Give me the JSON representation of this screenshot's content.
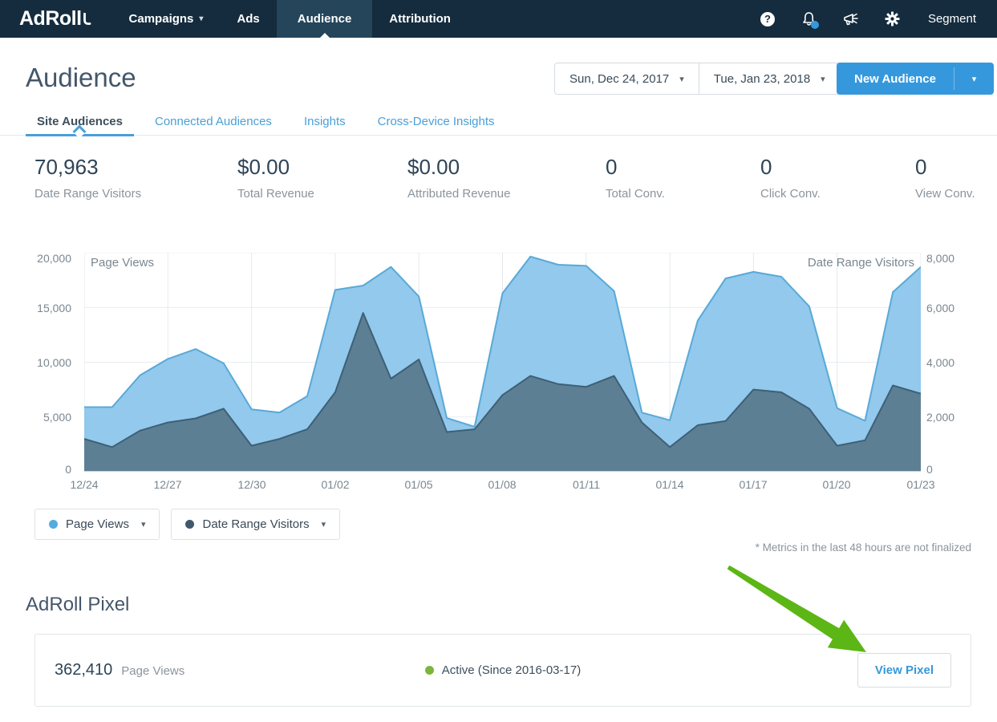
{
  "nav": {
    "logo": "AdRoll",
    "items": [
      {
        "label": "Campaigns",
        "caret": "▾",
        "active": false
      },
      {
        "label": "Ads",
        "active": false
      },
      {
        "label": "Audience",
        "active": true
      },
      {
        "label": "Attribution",
        "active": false
      }
    ],
    "help_glyph": "?",
    "segment_label": "Segment"
  },
  "header": {
    "title": "Audience",
    "date_start": "Sun, Dec 24, 2017",
    "date_end": "Tue, Jan 23, 2018",
    "picker_caret": "▾",
    "new_audience_label": "New Audience",
    "new_audience_caret": "▾"
  },
  "tabs": [
    {
      "label": "Site Audiences",
      "active": true
    },
    {
      "label": "Connected Audiences",
      "active": false
    },
    {
      "label": "Insights",
      "active": false
    },
    {
      "label": "Cross-Device Insights",
      "active": false
    }
  ],
  "stats": [
    {
      "value": "70,963",
      "label": "Date Range Visitors"
    },
    {
      "value": "$0.00",
      "label": "Total Revenue"
    },
    {
      "value": "$0.00",
      "label": "Attributed Revenue"
    },
    {
      "value": "0",
      "label": "Total Conv."
    },
    {
      "value": "0",
      "label": "Click Conv."
    },
    {
      "value": "0",
      "label": "View Conv."
    }
  ],
  "chart_data": {
    "type": "area",
    "x": [
      "12/24",
      "12/25",
      "12/26",
      "12/27",
      "12/28",
      "12/29",
      "12/30",
      "12/31",
      "01/01",
      "01/02",
      "01/03",
      "01/04",
      "01/05",
      "01/06",
      "01/07",
      "01/08",
      "01/09",
      "01/10",
      "01/11",
      "01/12",
      "01/13",
      "01/14",
      "01/15",
      "01/16",
      "01/17",
      "01/18",
      "01/19",
      "01/20",
      "01/21",
      "01/22",
      "01/23"
    ],
    "x_tick_labels": [
      "12/24",
      "12/27",
      "12/30",
      "01/02",
      "01/05",
      "01/08",
      "01/11",
      "01/14",
      "01/17",
      "01/20",
      "01/23"
    ],
    "left_axis": {
      "label": "Page Views",
      "ticks": [
        "20,000",
        "15,000",
        "10,000",
        "5,000",
        "0"
      ],
      "range": [
        0,
        20000
      ]
    },
    "right_axis": {
      "label": "Date Range Visitors",
      "ticks": [
        "8,000",
        "6,000",
        "4,000",
        "2,000",
        "0"
      ],
      "range": [
        0,
        8000
      ]
    },
    "grid": true,
    "legend_position": "below",
    "series": [
      {
        "name": "Page Views",
        "axis": "left",
        "fill": "#92c9ec",
        "stroke": "#58a9d8",
        "values": [
          5900,
          5900,
          8800,
          10300,
          11200,
          9900,
          5700,
          5400,
          6900,
          16600,
          17000,
          18700,
          16000,
          4900,
          4100,
          16300,
          19650,
          18900,
          18800,
          16500,
          5400,
          4700,
          13800,
          17650,
          18250,
          17800,
          15100,
          5800,
          4650,
          16400,
          18700
        ]
      },
      {
        "name": "Date Range Visitors",
        "axis": "right",
        "fill": "#5d7f94",
        "stroke": "#3e6077",
        "values": [
          1200,
          900,
          1500,
          1800,
          1950,
          2300,
          950,
          1200,
          1550,
          2900,
          5800,
          3400,
          4100,
          1450,
          1550,
          2800,
          3500,
          3200,
          3100,
          3500,
          1800,
          900,
          1700,
          1850,
          3000,
          2900,
          2300,
          950,
          1150,
          3150,
          2850
        ]
      }
    ]
  },
  "legend": [
    {
      "label": "Page Views",
      "color": "#55abe0",
      "caret": "▾"
    },
    {
      "label": "Date Range Visitors",
      "color": "#40586c",
      "caret": "▾"
    }
  ],
  "note": "* Metrics in the last 48 hours are not finalized",
  "pixel": {
    "heading": "AdRoll Pixel",
    "page_views": "362,410",
    "page_views_label": "Page Views",
    "status": "Active (Since 2016-03-17)",
    "status_color": "#7cb53e",
    "button_label": "View Pixel"
  },
  "colors": {
    "navbar_bg": "#142c3e",
    "navbar_active_bg": "#24455a",
    "accent_blue": "#3598dc",
    "tab_blue": "#4a9fd8",
    "arrow_green": "#5cb615"
  }
}
